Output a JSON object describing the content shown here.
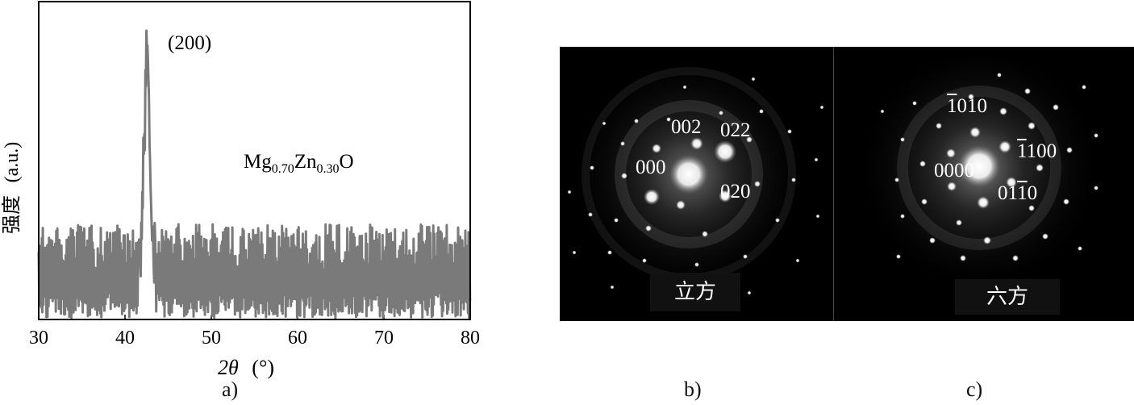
{
  "panel_a": {
    "label": "a)",
    "peak_label": "(200)",
    "composition": {
      "base1": "Mg",
      "sub1": "0.70",
      "base2": "Zn",
      "sub2": "0.30",
      "base3": "O"
    },
    "ylabel_text": "强度",
    "ylabel_unit": "(a.u.)",
    "xlabel_symbol": "2θ",
    "xlabel_unit": "(°)",
    "chart_data": {
      "type": "line",
      "x_range": [
        30,
        80
      ],
      "x_ticks": [
        "30",
        "40",
        "50",
        "60",
        "70",
        "80"
      ],
      "peaks": [
        {
          "x": 42.5,
          "label": "(200)"
        }
      ],
      "line_color": "#7a7a7a",
      "grid": false
    }
  },
  "panel_b": {
    "label": "b)",
    "name": "立方",
    "indices": [
      "000",
      "002",
      "022",
      "020"
    ]
  },
  "panel_c": {
    "label": "c)",
    "name": "六方",
    "indices": [
      "0000",
      "1010",
      "1100",
      "0110"
    ]
  }
}
